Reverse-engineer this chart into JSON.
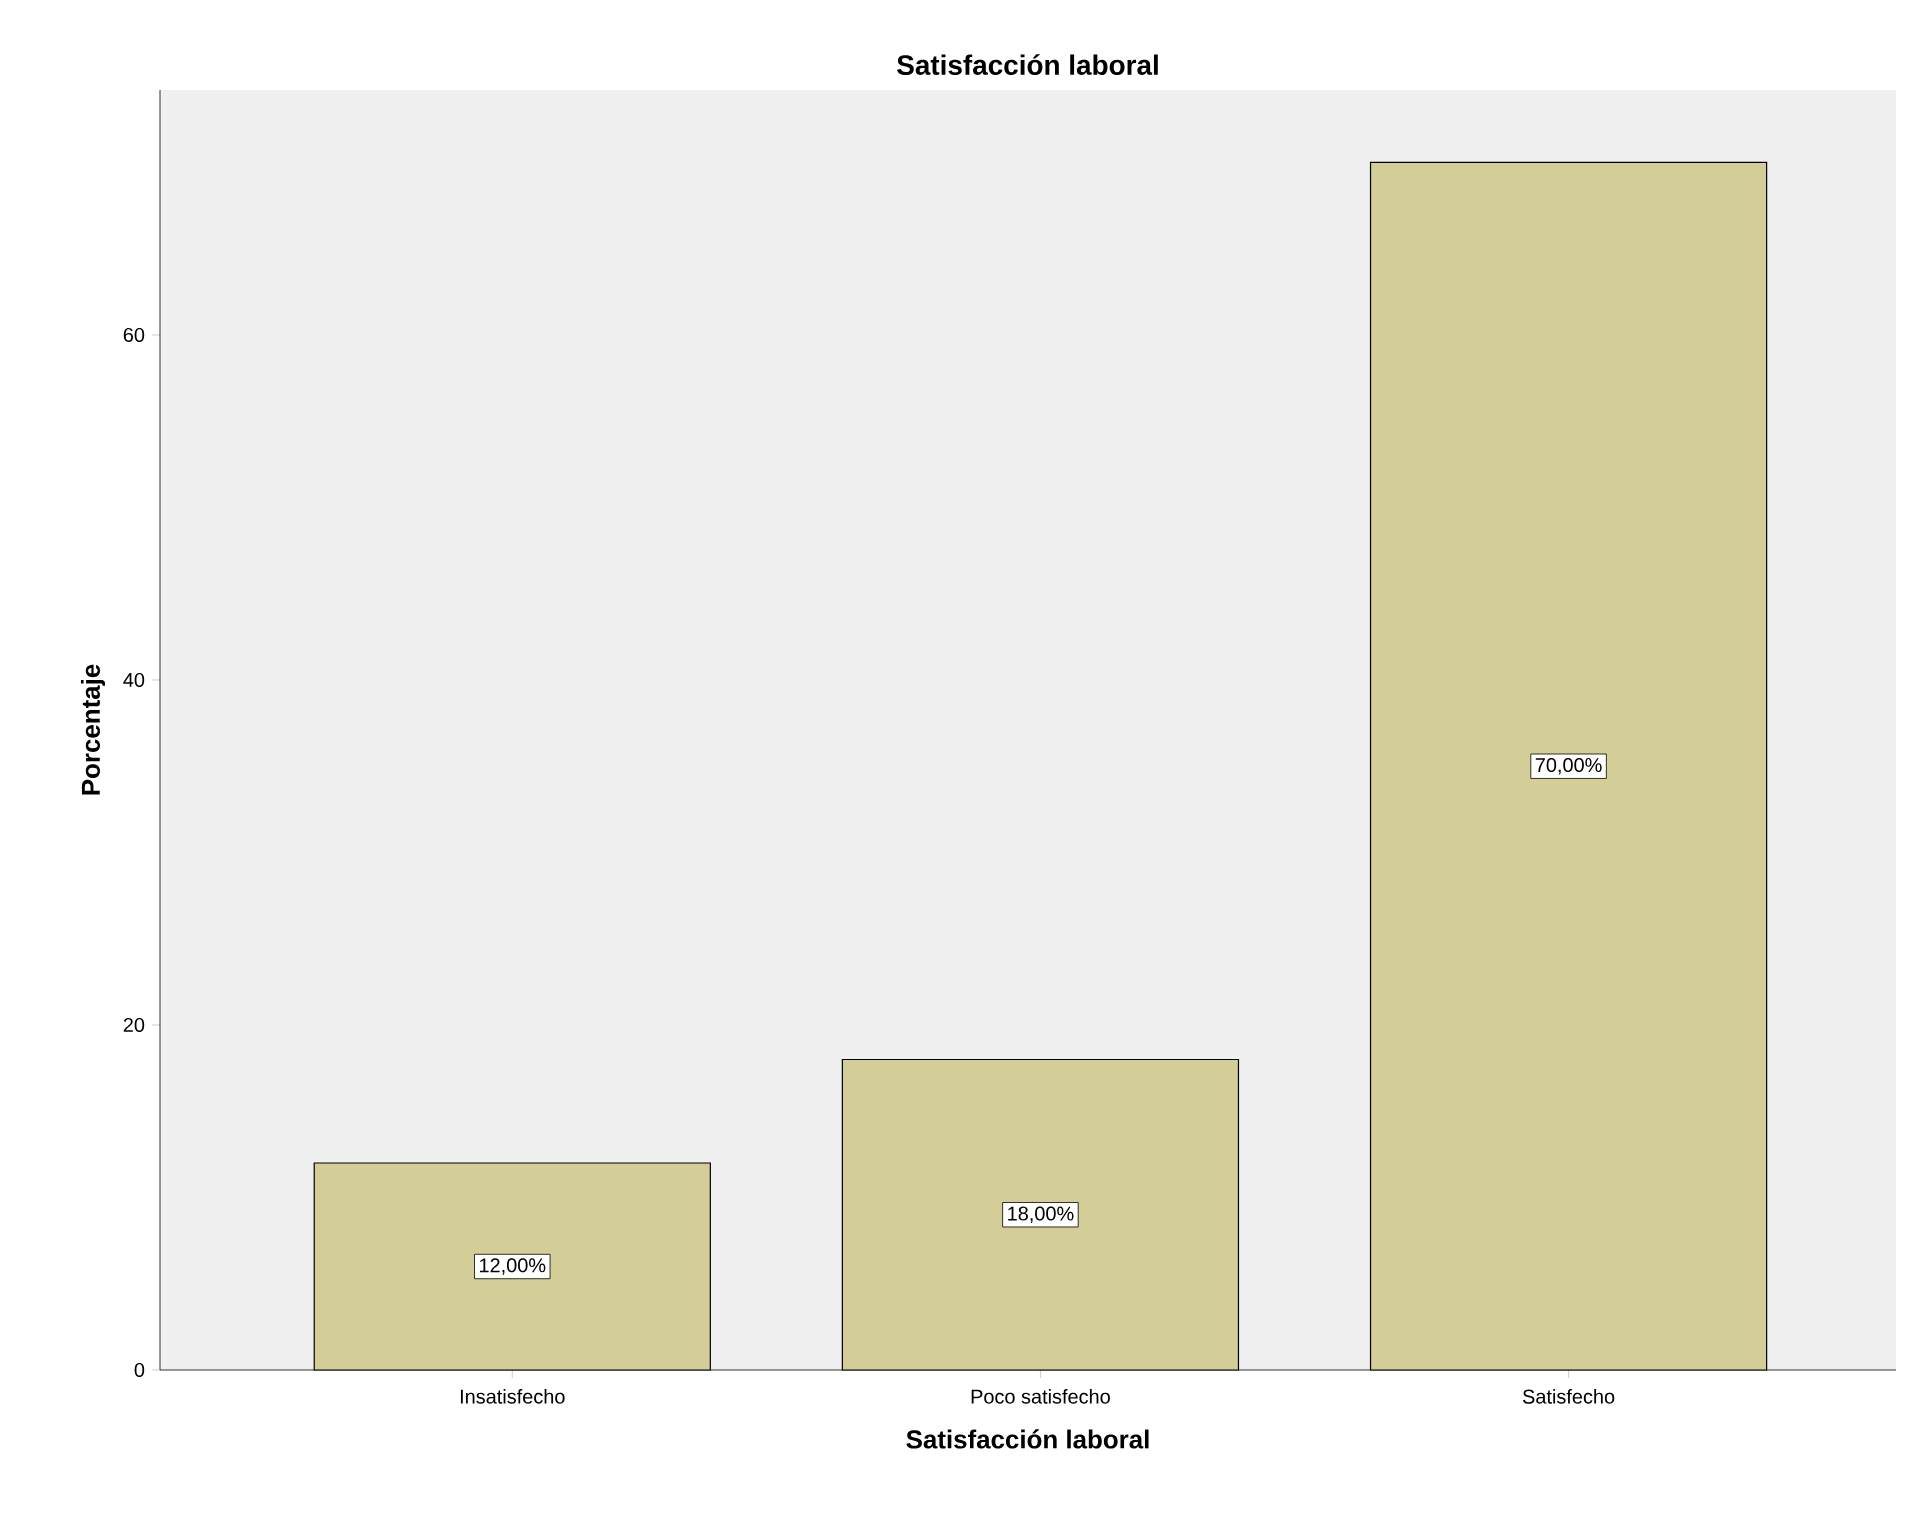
{
  "chart_data": {
    "type": "bar",
    "title": "Satisfacción laboral",
    "xlabel": "Satisfacción laboral",
    "ylabel": "Porcentaje",
    "categories": [
      "Insatisfecho",
      "Poco satisfecho",
      "Satisfecho"
    ],
    "values": [
      12,
      18,
      70
    ],
    "value_labels": [
      "12,00%",
      "18,00%",
      "70,00%"
    ],
    "color": "#d3cd98",
    "ylim": [
      0,
      74.2
    ],
    "yticks": [
      0,
      20,
      40,
      60
    ],
    "grid": false
  }
}
